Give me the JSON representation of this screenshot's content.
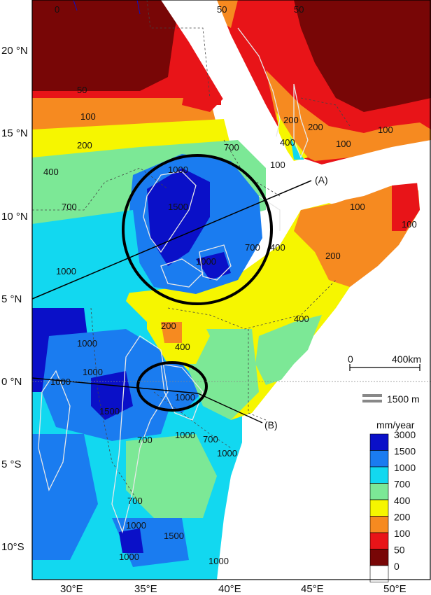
{
  "map": {
    "lat_ticks": [
      "20 °N",
      "15 °N",
      "10 °N",
      "5 °N",
      "0 °N",
      "5 °S",
      "10°S"
    ],
    "lon_ticks": [
      "30°E",
      "35°E",
      "40°E",
      "45°E",
      "50°E"
    ],
    "annotation_a": "(A)",
    "annotation_b": "(B)",
    "scale_bar": {
      "start": "0",
      "end": "400km"
    },
    "elevation_legend": "1500 m",
    "contour_labels": [
      "0",
      "50",
      "100",
      "200",
      "400",
      "700",
      "1000",
      "1500"
    ]
  },
  "legend": {
    "title": "mm/year",
    "items": [
      {
        "label": "3000",
        "color": "#0a10c8"
      },
      {
        "label": "1500",
        "color": "#1a7cf0"
      },
      {
        "label": "1000",
        "color": "#12d8f0"
      },
      {
        "label": "700",
        "color": "#7ce896"
      },
      {
        "label": "400",
        "color": "#f6f600"
      },
      {
        "label": "200",
        "color": "#f68a20"
      },
      {
        "label": "100",
        "color": "#e81418"
      },
      {
        "label": "50",
        "color": "#780606"
      },
      {
        "label": "0",
        "color": "#ffffff"
      }
    ]
  },
  "colors": {
    "sea": "#ffffff",
    "frame": "#000000",
    "highlight_circle": "#000000",
    "elevation_contour": "#e8e8e8"
  }
}
